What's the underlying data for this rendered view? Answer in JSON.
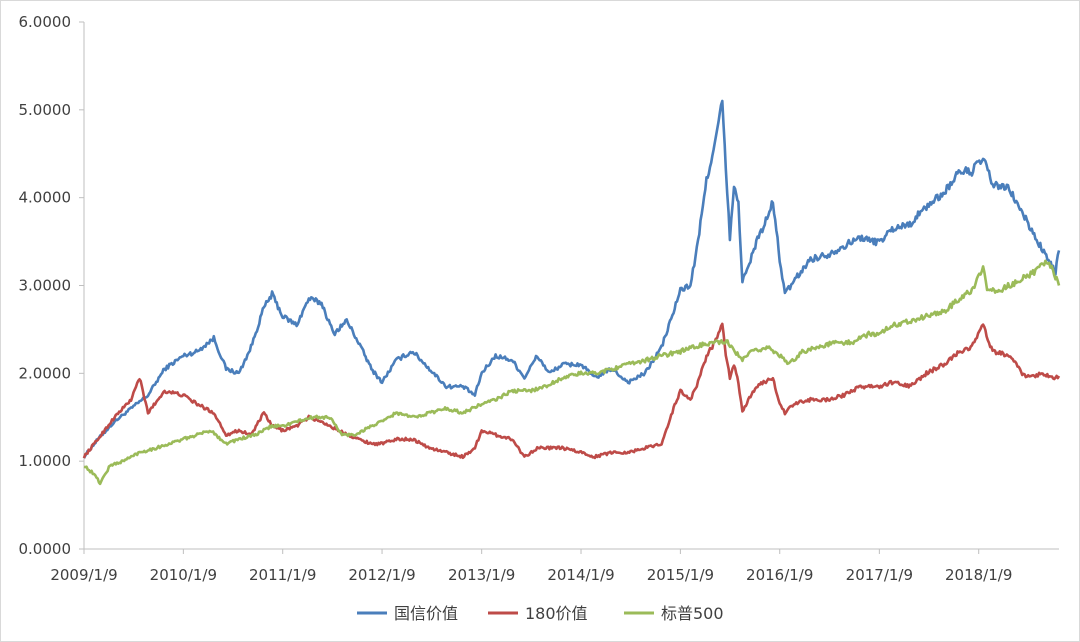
{
  "chart_data": {
    "type": "line",
    "title": "",
    "xlabel": "",
    "ylabel": "",
    "ylim": [
      0,
      6
    ],
    "yticks": [
      "0.0000",
      "1.0000",
      "2.0000",
      "3.0000",
      "4.0000",
      "5.0000",
      "6.0000"
    ],
    "xticks": [
      "2009/1/9",
      "2010/1/9",
      "2011/1/9",
      "2012/1/9",
      "2013/1/9",
      "2014/1/9",
      "2015/1/9",
      "2016/1/9",
      "2017/1/9",
      "2018/1/9"
    ],
    "x_start": "2009/1/9",
    "x_end": "2018/10/31",
    "grid": false,
    "legend_position": "bottom",
    "series": [
      {
        "name": "国信价值",
        "color": "#4a7ebb",
        "points": [
          [
            "2009/1/9",
            1.05
          ],
          [
            "2009/3/1",
            1.25
          ],
          [
            "2009/5/1",
            1.45
          ],
          [
            "2009/7/1",
            1.6
          ],
          [
            "2009/9/1",
            1.75
          ],
          [
            "2009/11/1",
            2.05
          ],
          [
            "2010/1/9",
            2.2
          ],
          [
            "2010/3/1",
            2.25
          ],
          [
            "2010/5/1",
            2.4
          ],
          [
            "2010/6/15",
            2.05
          ],
          [
            "2010/8/1",
            2.0
          ],
          [
            "2010/9/15",
            2.3
          ],
          [
            "2010/11/1",
            2.75
          ],
          [
            "2010/12/1",
            2.9
          ],
          [
            "2011/1/9",
            2.65
          ],
          [
            "2011/3/1",
            2.55
          ],
          [
            "2011/4/15",
            2.85
          ],
          [
            "2011/6/1",
            2.8
          ],
          [
            "2011/7/15",
            2.45
          ],
          [
            "2011/9/1",
            2.6
          ],
          [
            "2011/10/15",
            2.35
          ],
          [
            "2011/12/1",
            2.05
          ],
          [
            "2012/1/9",
            1.9
          ],
          [
            "2012/3/1",
            2.15
          ],
          [
            "2012/5/1",
            2.25
          ],
          [
            "2012/7/1",
            2.05
          ],
          [
            "2012/9/1",
            1.85
          ],
          [
            "2012/11/1",
            1.85
          ],
          [
            "2012/12/15",
            1.75
          ],
          [
            "2013/1/9",
            2.0
          ],
          [
            "2013/3/1",
            2.2
          ],
          [
            "2013/5/1",
            2.15
          ],
          [
            "2013/6/15",
            1.95
          ],
          [
            "2013/8/1",
            2.2
          ],
          [
            "2013/9/15",
            2.0
          ],
          [
            "2013/11/1",
            2.1
          ],
          [
            "2014/1/9",
            2.1
          ],
          [
            "2014/3/1",
            1.95
          ],
          [
            "2014/5/1",
            2.05
          ],
          [
            "2014/7/1",
            1.9
          ],
          [
            "2014/9/1",
            2.0
          ],
          [
            "2014/11/1",
            2.3
          ],
          [
            "2014/12/15",
            2.7
          ],
          [
            "2015/1/9",
            2.95
          ],
          [
            "2015/2/15",
            3.0
          ],
          [
            "2015/3/15",
            3.5
          ],
          [
            "2015/4/15",
            4.2
          ],
          [
            "2015/5/15",
            4.6
          ],
          [
            "2015/6/12",
            5.1
          ],
          [
            "2015/6/25",
            4.3
          ],
          [
            "2015/7/10",
            3.55
          ],
          [
            "2015/7/25",
            4.1
          ],
          [
            "2015/8/10",
            3.95
          ],
          [
            "2015/8/25",
            3.05
          ],
          [
            "2015/9/15",
            3.2
          ],
          [
            "2015/10/15",
            3.5
          ],
          [
            "2015/11/15",
            3.7
          ],
          [
            "2015/12/15",
            3.95
          ],
          [
            "2016/1/9",
            3.3
          ],
          [
            "2016/1/28",
            2.9
          ],
          [
            "2016/3/1",
            3.05
          ],
          [
            "2016/5/1",
            3.3
          ],
          [
            "2016/7/1",
            3.35
          ],
          [
            "2016/9/1",
            3.45
          ],
          [
            "2016/11/1",
            3.55
          ],
          [
            "2016/12/15",
            3.5
          ],
          [
            "2017/1/9",
            3.5
          ],
          [
            "2017/3/1",
            3.65
          ],
          [
            "2017/5/1",
            3.7
          ],
          [
            "2017/7/1",
            3.9
          ],
          [
            "2017/9/1",
            4.05
          ],
          [
            "2017/11/1",
            4.3
          ],
          [
            "2017/12/15",
            4.3
          ],
          [
            "2018/1/25",
            4.45
          ],
          [
            "2018/3/1",
            4.15
          ],
          [
            "2018/5/1",
            4.1
          ],
          [
            "2018/7/1",
            3.75
          ],
          [
            "2018/9/1",
            3.4
          ],
          [
            "2018/10/18",
            3.15
          ],
          [
            "2018/10/31",
            3.4
          ]
        ]
      },
      {
        "name": "180价值",
        "color": "#be4b48",
        "points": [
          [
            "2009/1/9",
            1.05
          ],
          [
            "2009/3/1",
            1.25
          ],
          [
            "2009/5/1",
            1.5
          ],
          [
            "2009/7/1",
            1.7
          ],
          [
            "2009/8/1",
            1.95
          ],
          [
            "2009/9/1",
            1.55
          ],
          [
            "2009/11/1",
            1.8
          ],
          [
            "2010/1/9",
            1.75
          ],
          [
            "2010/3/1",
            1.65
          ],
          [
            "2010/5/1",
            1.55
          ],
          [
            "2010/6/15",
            1.3
          ],
          [
            "2010/8/1",
            1.35
          ],
          [
            "2010/9/15",
            1.3
          ],
          [
            "2010/11/1",
            1.55
          ],
          [
            "2010/12/1",
            1.4
          ],
          [
            "2011/1/9",
            1.35
          ],
          [
            "2011/3/1",
            1.4
          ],
          [
            "2011/4/15",
            1.5
          ],
          [
            "2011/6/1",
            1.45
          ],
          [
            "2011/8/1",
            1.35
          ],
          [
            "2011/10/15",
            1.25
          ],
          [
            "2011/12/1",
            1.2
          ],
          [
            "2012/1/9",
            1.2
          ],
          [
            "2012/3/1",
            1.25
          ],
          [
            "2012/5/1",
            1.25
          ],
          [
            "2012/7/1",
            1.15
          ],
          [
            "2012/9/1",
            1.1
          ],
          [
            "2012/11/1",
            1.05
          ],
          [
            "2012/12/15",
            1.15
          ],
          [
            "2013/1/9",
            1.35
          ],
          [
            "2013/3/1",
            1.3
          ],
          [
            "2013/5/1",
            1.25
          ],
          [
            "2013/6/15",
            1.05
          ],
          [
            "2013/8/1",
            1.15
          ],
          [
            "2013/9/15",
            1.15
          ],
          [
            "2013/11/1",
            1.15
          ],
          [
            "2014/1/9",
            1.1
          ],
          [
            "2014/3/1",
            1.05
          ],
          [
            "2014/5/1",
            1.1
          ],
          [
            "2014/7/1",
            1.1
          ],
          [
            "2014/9/1",
            1.15
          ],
          [
            "2014/11/1",
            1.2
          ],
          [
            "2014/12/15",
            1.6
          ],
          [
            "2015/1/9",
            1.8
          ],
          [
            "2015/2/15",
            1.7
          ],
          [
            "2015/3/15",
            1.9
          ],
          [
            "2015/4/15",
            2.2
          ],
          [
            "2015/5/15",
            2.35
          ],
          [
            "2015/6/12",
            2.55
          ],
          [
            "2015/6/25",
            2.2
          ],
          [
            "2015/7/10",
            1.95
          ],
          [
            "2015/7/25",
            2.1
          ],
          [
            "2015/8/10",
            1.9
          ],
          [
            "2015/8/25",
            1.55
          ],
          [
            "2015/9/15",
            1.7
          ],
          [
            "2015/10/15",
            1.85
          ],
          [
            "2015/11/15",
            1.9
          ],
          [
            "2015/12/15",
            1.95
          ],
          [
            "2016/1/9",
            1.65
          ],
          [
            "2016/1/28",
            1.55
          ],
          [
            "2016/3/1",
            1.65
          ],
          [
            "2016/5/1",
            1.7
          ],
          [
            "2016/7/1",
            1.7
          ],
          [
            "2016/9/1",
            1.75
          ],
          [
            "2016/11/1",
            1.85
          ],
          [
            "2016/12/15",
            1.85
          ],
          [
            "2017/1/9",
            1.85
          ],
          [
            "2017/3/1",
            1.9
          ],
          [
            "2017/5/1",
            1.85
          ],
          [
            "2017/7/1",
            2.0
          ],
          [
            "2017/9/1",
            2.1
          ],
          [
            "2017/11/1",
            2.25
          ],
          [
            "2017/12/15",
            2.3
          ],
          [
            "2018/1/25",
            2.55
          ],
          [
            "2018/3/1",
            2.25
          ],
          [
            "2018/5/1",
            2.2
          ],
          [
            "2018/7/1",
            1.95
          ],
          [
            "2018/9/1",
            2.0
          ],
          [
            "2018/10/18",
            1.95
          ],
          [
            "2018/10/31",
            1.97
          ]
        ]
      },
      {
        "name": "标普500",
        "color": "#9bbb59",
        "points": [
          [
            "2009/1/9",
            0.95
          ],
          [
            "2009/2/15",
            0.85
          ],
          [
            "2009/3/9",
            0.75
          ],
          [
            "2009/4/15",
            0.95
          ],
          [
            "2009/6/1",
            1.0
          ],
          [
            "2009/8/1",
            1.1
          ],
          [
            "2009/10/1",
            1.15
          ],
          [
            "2010/1/9",
            1.25
          ],
          [
            "2010/3/1",
            1.3
          ],
          [
            "2010/4/20",
            1.35
          ],
          [
            "2010/6/15",
            1.2
          ],
          [
            "2010/8/1",
            1.25
          ],
          [
            "2010/10/1",
            1.3
          ],
          [
            "2010/12/1",
            1.4
          ],
          [
            "2011/1/9",
            1.4
          ],
          [
            "2011/3/1",
            1.45
          ],
          [
            "2011/5/1",
            1.5
          ],
          [
            "2011/7/1",
            1.5
          ],
          [
            "2011/8/15",
            1.3
          ],
          [
            "2011/10/1",
            1.3
          ],
          [
            "2011/12/1",
            1.4
          ],
          [
            "2012/1/9",
            1.45
          ],
          [
            "2012/3/1",
            1.55
          ],
          [
            "2012/5/1",
            1.5
          ],
          [
            "2012/7/1",
            1.55
          ],
          [
            "2012/9/1",
            1.6
          ],
          [
            "2012/11/1",
            1.55
          ],
          [
            "2013/1/9",
            1.65
          ],
          [
            "2013/3/1",
            1.7
          ],
          [
            "2013/5/1",
            1.8
          ],
          [
            "2013/7/1",
            1.8
          ],
          [
            "2013/9/1",
            1.85
          ],
          [
            "2013/11/1",
            1.95
          ],
          [
            "2014/1/9",
            2.0
          ],
          [
            "2014/3/1",
            2.0
          ],
          [
            "2014/5/1",
            2.05
          ],
          [
            "2014/7/1",
            2.1
          ],
          [
            "2014/9/1",
            2.15
          ],
          [
            "2014/11/1",
            2.2
          ],
          [
            "2015/1/9",
            2.25
          ],
          [
            "2015/3/1",
            2.3
          ],
          [
            "2015/5/1",
            2.35
          ],
          [
            "2015/7/1",
            2.35
          ],
          [
            "2015/8/25",
            2.15
          ],
          [
            "2015/10/1",
            2.25
          ],
          [
            "2015/12/1",
            2.3
          ],
          [
            "2016/1/9",
            2.2
          ],
          [
            "2016/2/11",
            2.1
          ],
          [
            "2016/4/1",
            2.25
          ],
          [
            "2016/6/1",
            2.3
          ],
          [
            "2016/8/1",
            2.35
          ],
          [
            "2016/10/1",
            2.35
          ],
          [
            "2016/12/1",
            2.45
          ],
          [
            "2017/1/9",
            2.45
          ],
          [
            "2017/3/1",
            2.55
          ],
          [
            "2017/5/1",
            2.6
          ],
          [
            "2017/7/1",
            2.65
          ],
          [
            "2017/9/1",
            2.7
          ],
          [
            "2017/11/1",
            2.85
          ],
          [
            "2017/12/15",
            2.95
          ],
          [
            "2018/1/25",
            3.2
          ],
          [
            "2018/2/9",
            2.95
          ],
          [
            "2018/4/1",
            2.95
          ],
          [
            "2018/6/1",
            3.05
          ],
          [
            "2018/8/1",
            3.15
          ],
          [
            "2018/9/20",
            3.28
          ],
          [
            "2018/10/18",
            3.1
          ],
          [
            "2018/10/31",
            3.0
          ]
        ]
      }
    ]
  }
}
